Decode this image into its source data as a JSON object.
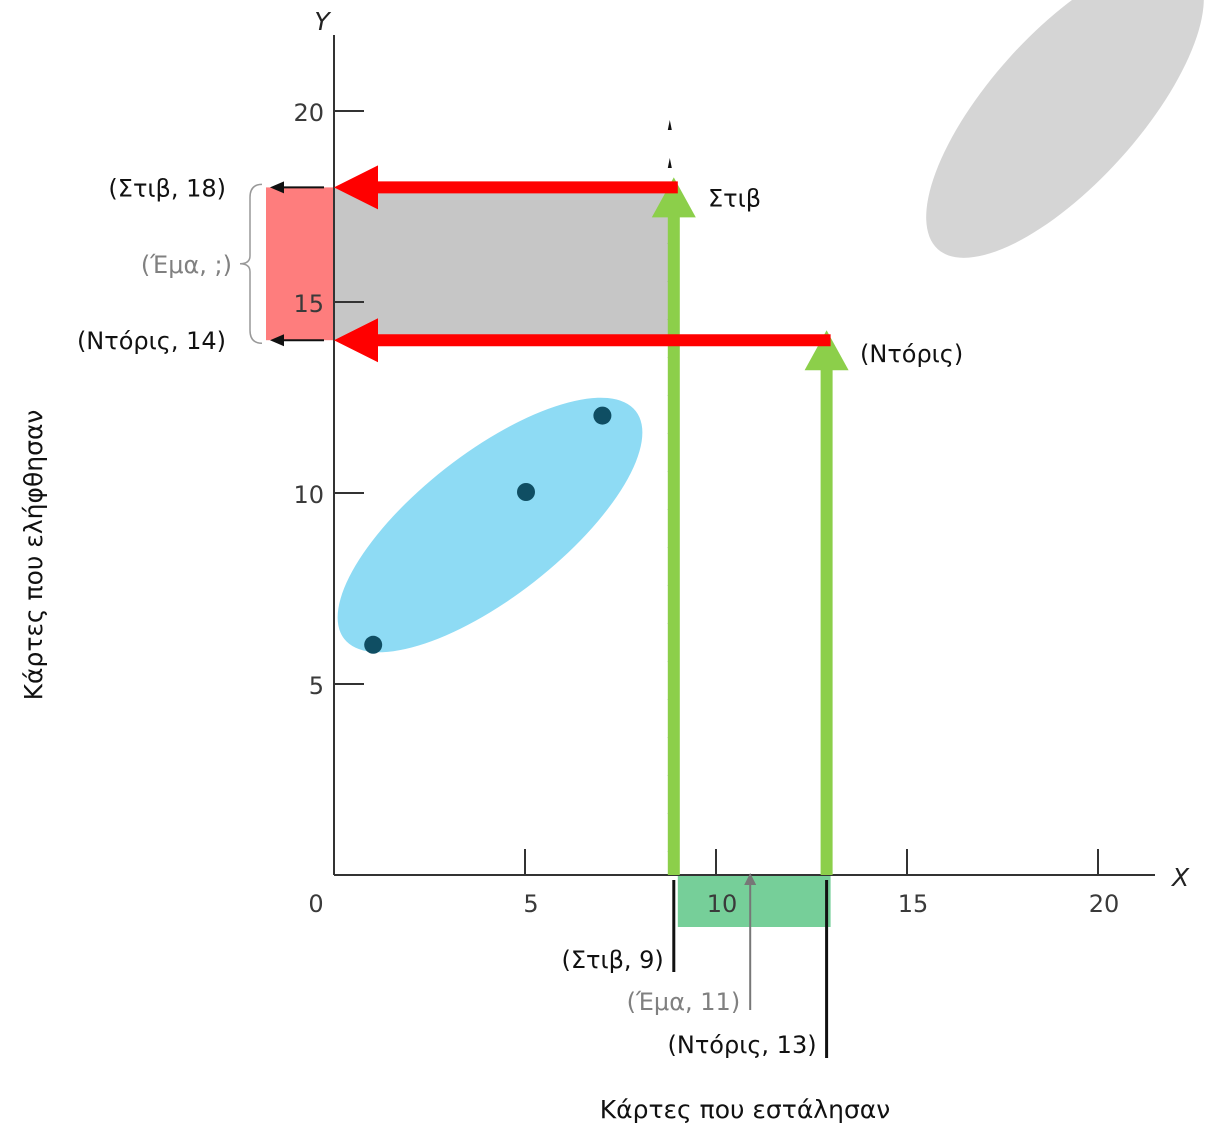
{
  "chart_data": {
    "type": "scatter",
    "title": "",
    "x_axis": {
      "letter": "X",
      "label": "Κάρτες που εστάλησαν",
      "range": [
        0,
        21
      ],
      "ticks": [
        0,
        5,
        10,
        15,
        20
      ]
    },
    "y_axis": {
      "letter": "Y",
      "label": "Κάρτες που ελήφθησαν",
      "range": [
        0,
        21
      ],
      "ticks": [
        5,
        10,
        15,
        20
      ]
    },
    "points": [
      {
        "x": 1,
        "y": 6
      },
      {
        "x": 5,
        "y": 10
      },
      {
        "x": 7,
        "y": 12
      }
    ],
    "cases": [
      {
        "name": "Στιβ",
        "x": 9,
        "y": 18,
        "x_label": "(Στιβ, 9)",
        "y_label": "(Στιβ, 18)",
        "point_label": "Στιβ"
      },
      {
        "name": "Ντόρις",
        "x": 13,
        "y": 14,
        "x_label": "(Ντόρις, 13)",
        "y_label": "(Ντόρις, 14)",
        "point_label": "(Ντόρις)"
      }
    ],
    "unknown_case": {
      "name": "Έμα",
      "x": 11,
      "x_label": "(Έμα, 11)",
      "y_label": "(Έμα, ;)"
    },
    "grid": false,
    "legend": "none",
    "colors": {
      "point": "#0f4e63",
      "ellipse_blue": "#8edbf4",
      "ellipse_gray": "#d5d5d5",
      "red_arrow": "#ff0000",
      "green_arrow": "#8ccf4a",
      "red_band": "#fe7d7d",
      "gray_band": "#c6c6c6",
      "green_band": "#76cf99",
      "axis": "#333333"
    }
  }
}
